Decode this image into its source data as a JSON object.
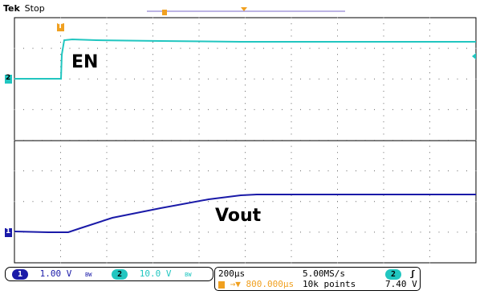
{
  "header": {
    "brand": "Tek",
    "status": "Stop"
  },
  "traces": {
    "en_label": "EN",
    "vout_label": "Vout",
    "ch1_marker": "1",
    "ch2_marker": "2",
    "trigger_marker": "T"
  },
  "footer": {
    "ch1": {
      "badge": "1",
      "scale": "1.00 V",
      "coupling": "BW"
    },
    "ch2": {
      "badge": "2",
      "scale": "10.0 V",
      "coupling": "BW"
    },
    "timebase": "200µs",
    "sample_rate": "5.00MS/s",
    "trigger_source": "2",
    "trigger_slope": "ʃ",
    "trigger_position": "800.000µs",
    "record_length": "10k points",
    "trigger_level": "7.40 V"
  },
  "colors": {
    "ch1": "#1a1aa8",
    "ch2": "#21c6c0",
    "trigger": "#f0a020"
  }
}
